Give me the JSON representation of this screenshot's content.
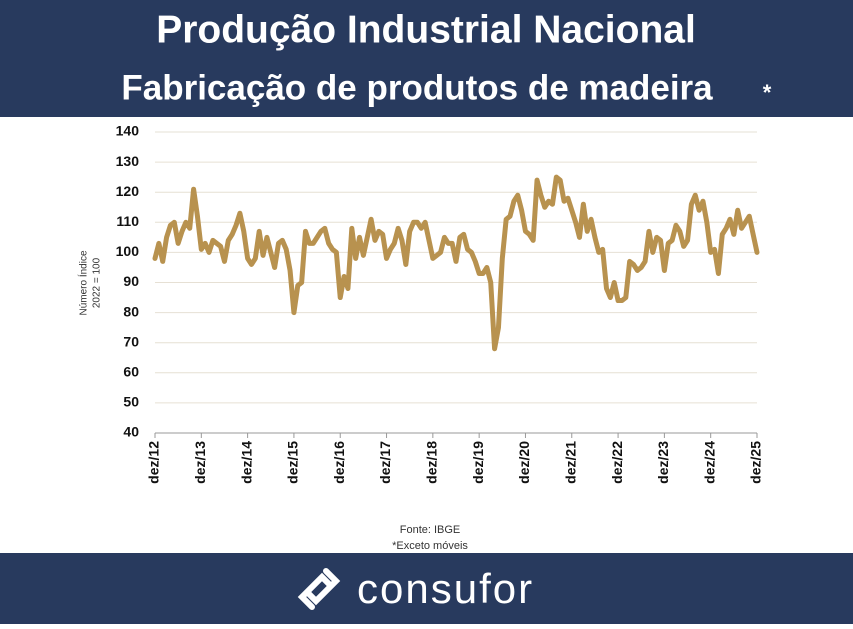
{
  "chart_data": {
    "type": "line",
    "title": "Produção Industrial Nacional",
    "subtitle": "Fabricação de produtos de madeira",
    "subtitle_mark": "*",
    "y_label": [
      "Número Índice",
      "2022 = 100"
    ],
    "source": "Fonte: IBGE",
    "note": "*Exceto móveis",
    "brand": "consufor",
    "ylim": [
      40,
      140
    ],
    "yticks": [
      40,
      50,
      60,
      70,
      80,
      90,
      100,
      110,
      120,
      130,
      140
    ],
    "grid": true,
    "categories": [
      "dez/12",
      null,
      null,
      null,
      null,
      null,
      null,
      null,
      null,
      null,
      null,
      null,
      "dez/13",
      null,
      null,
      null,
      null,
      null,
      null,
      null,
      null,
      null,
      null,
      null,
      "dez/14",
      null,
      null,
      null,
      null,
      null,
      null,
      null,
      null,
      null,
      null,
      null,
      "dez/15",
      null,
      null,
      null,
      null,
      null,
      null,
      null,
      null,
      null,
      null,
      null,
      "dez/16",
      null,
      null,
      null,
      null,
      null,
      null,
      null,
      null,
      null,
      null,
      null,
      "dez/17",
      null,
      null,
      null,
      null,
      null,
      null,
      null,
      null,
      null,
      null,
      null,
      "dez/18",
      null,
      null,
      null,
      null,
      null,
      null,
      null,
      null,
      null,
      null,
      null,
      "dez/19",
      null,
      null,
      null,
      null,
      null,
      null,
      null,
      null,
      null,
      null,
      null,
      "dez/20",
      null,
      null,
      null,
      null,
      null,
      null,
      null,
      null,
      null,
      null,
      null,
      "dez/21",
      null,
      null,
      null,
      null,
      null,
      null,
      null,
      null,
      null,
      null,
      null,
      "dez/22",
      null,
      null,
      null,
      null,
      null,
      null,
      null,
      null,
      null,
      null,
      null,
      "dez/23",
      null,
      null,
      null,
      null,
      null,
      null,
      null,
      null,
      null,
      null,
      null,
      "dez/24",
      null,
      null,
      null,
      null,
      null,
      null,
      null,
      null,
      null,
      null,
      null,
      "dez/25"
    ],
    "series": [
      {
        "color": "#b8924f",
        "values": [
          98,
          103,
          97,
          105,
          109,
          110,
          103,
          107,
          110,
          108,
          121,
          112,
          101,
          103,
          100,
          104,
          103,
          102,
          97,
          104,
          106,
          109,
          113,
          107,
          98,
          96,
          98,
          107,
          99,
          105,
          100,
          95,
          103,
          104,
          101,
          94,
          80,
          89,
          90,
          107,
          103,
          103,
          105,
          107,
          108,
          103,
          101,
          100,
          85,
          92,
          88,
          108,
          98,
          105,
          99,
          105,
          111,
          104,
          107,
          106,
          98,
          101,
          103,
          108,
          104,
          96,
          107,
          110,
          110,
          108,
          110,
          104,
          98,
          99,
          100,
          105,
          103,
          103,
          97,
          105,
          106,
          101,
          100,
          97,
          93,
          93,
          95,
          90,
          68,
          75,
          98,
          111,
          112,
          117,
          119,
          114,
          107,
          106,
          104,
          124,
          119,
          115,
          117,
          116,
          125,
          124,
          117,
          118,
          114,
          110,
          105,
          116,
          107,
          111,
          105,
          100,
          101,
          88,
          85,
          90,
          84,
          84,
          85,
          97,
          96,
          94,
          95,
          97,
          107,
          100,
          105,
          104,
          94,
          103,
          104,
          109,
          107,
          102,
          104,
          116,
          119,
          114,
          117,
          110,
          100,
          101,
          93,
          106,
          108,
          111,
          106,
          114,
          108,
          110,
          112,
          106,
          100
        ]
      }
    ]
  }
}
